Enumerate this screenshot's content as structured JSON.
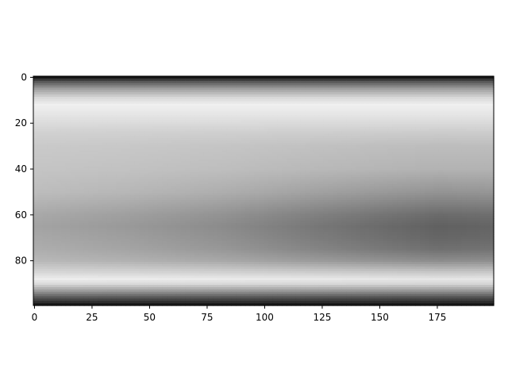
{
  "chart_data": {
    "type": "heatmap",
    "colormap": "gray",
    "x_range": [
      0,
      199
    ],
    "y_range": [
      0,
      99
    ],
    "y_axis": "inverted",
    "x_ticks": [
      "0",
      "25",
      "50",
      "75",
      "100",
      "125",
      "150",
      "175"
    ],
    "y_ticks": [
      "0",
      "20",
      "40",
      "60",
      "80"
    ],
    "x_tick_values": [
      0,
      25,
      50,
      75,
      100,
      125,
      150,
      175
    ],
    "y_tick_values": [
      0,
      20,
      40,
      60,
      80
    ],
    "row_profile_start": {
      "rows": [
        0,
        2,
        5,
        9,
        12,
        18,
        24,
        30,
        40,
        50,
        55,
        60,
        65,
        70,
        75,
        80,
        85,
        88,
        90,
        93,
        96,
        99
      ],
      "values": [
        0.08,
        0.35,
        0.62,
        0.85,
        0.94,
        0.88,
        0.82,
        0.79,
        0.77,
        0.74,
        0.7,
        0.66,
        0.64,
        0.66,
        0.68,
        0.72,
        0.84,
        0.93,
        0.86,
        0.62,
        0.35,
        0.1
      ]
    },
    "row_profile_end": {
      "rows": [
        0,
        2,
        5,
        9,
        12,
        18,
        24,
        30,
        40,
        50,
        55,
        60,
        65,
        70,
        75,
        80,
        85,
        88,
        90,
        93,
        96,
        99
      ],
      "values": [
        0.08,
        0.35,
        0.62,
        0.85,
        0.94,
        0.88,
        0.8,
        0.74,
        0.7,
        0.58,
        0.5,
        0.42,
        0.38,
        0.4,
        0.44,
        0.55,
        0.78,
        0.9,
        0.84,
        0.6,
        0.32,
        0.1
      ]
    },
    "column_weight": {
      "cols": [
        0,
        40,
        80,
        120,
        150,
        175,
        199
      ],
      "values": [
        0.0,
        0.15,
        0.35,
        0.65,
        0.85,
        1.0,
        0.95
      ]
    }
  }
}
